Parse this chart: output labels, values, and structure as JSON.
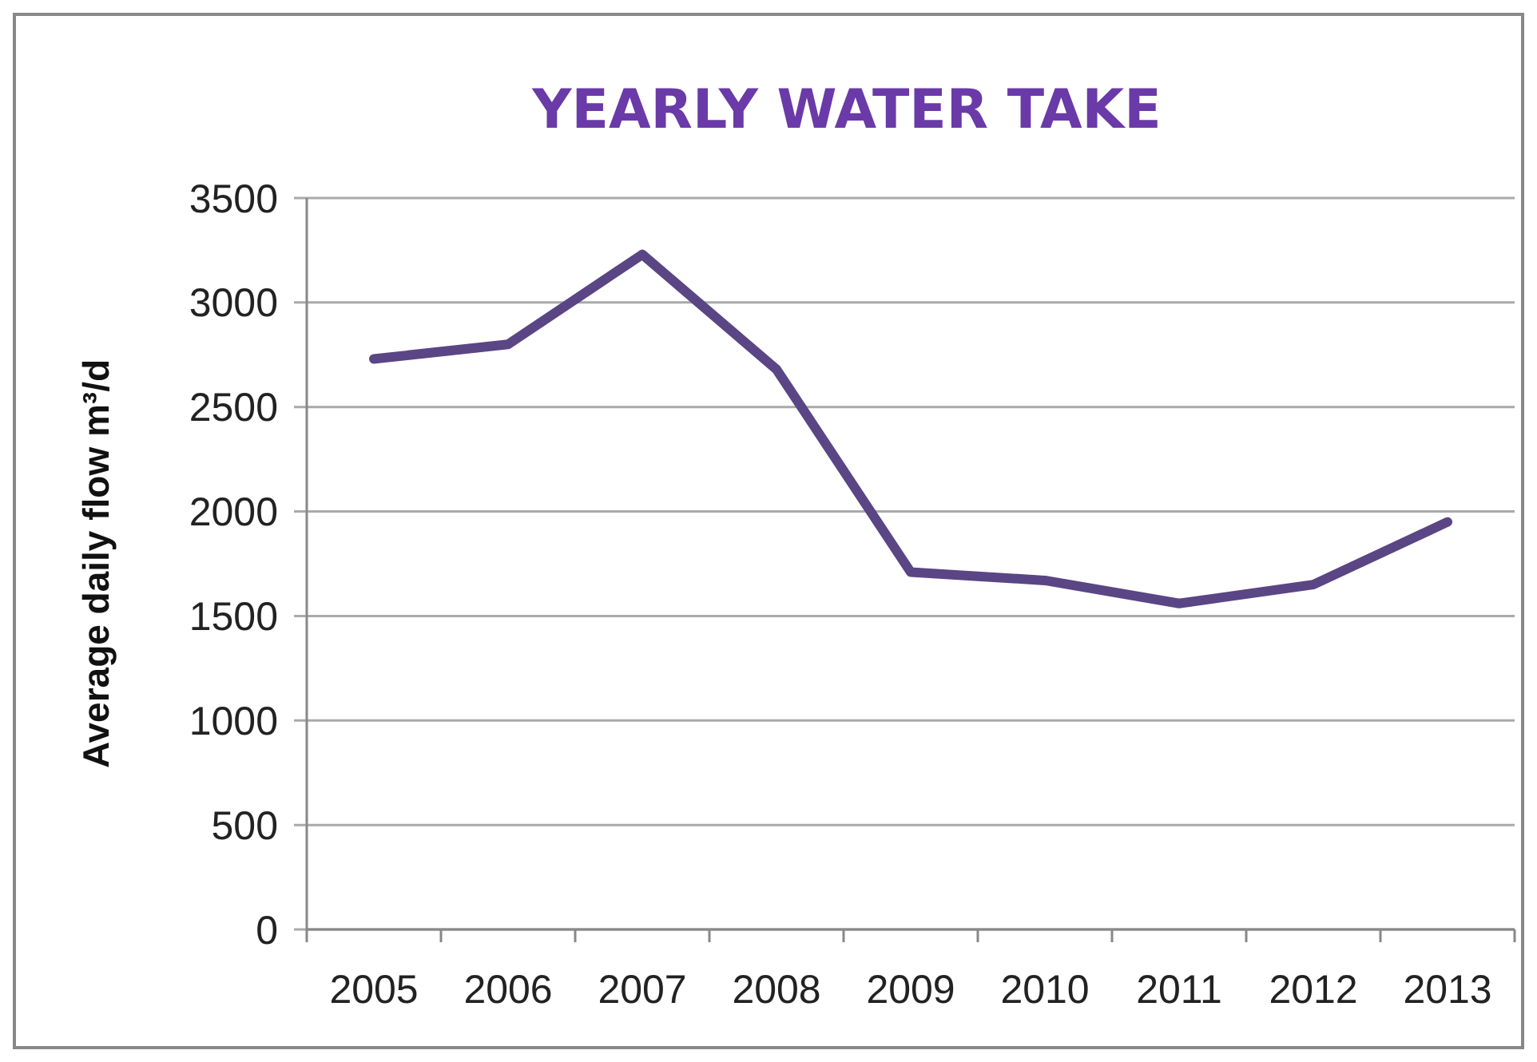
{
  "chart_data": {
    "type": "line",
    "title": "YEARLY WATER TAKE",
    "ylabel": "Average daily flow m³/d",
    "categories": [
      "2005",
      "2006",
      "2007",
      "2008",
      "2009",
      "2010",
      "2011",
      "2012",
      "2013"
    ],
    "series": [
      {
        "color": "#5a4585",
        "values": [
          2730,
          2800,
          3230,
          2680,
          1710,
          1670,
          1560,
          1650,
          1950
        ]
      }
    ],
    "ylim": [
      0,
      3500
    ],
    "yticks": [
      0,
      500,
      1000,
      1500,
      2000,
      2500,
      3000,
      3500
    ],
    "grid": "y",
    "marker": "none",
    "line_style": "solid"
  }
}
